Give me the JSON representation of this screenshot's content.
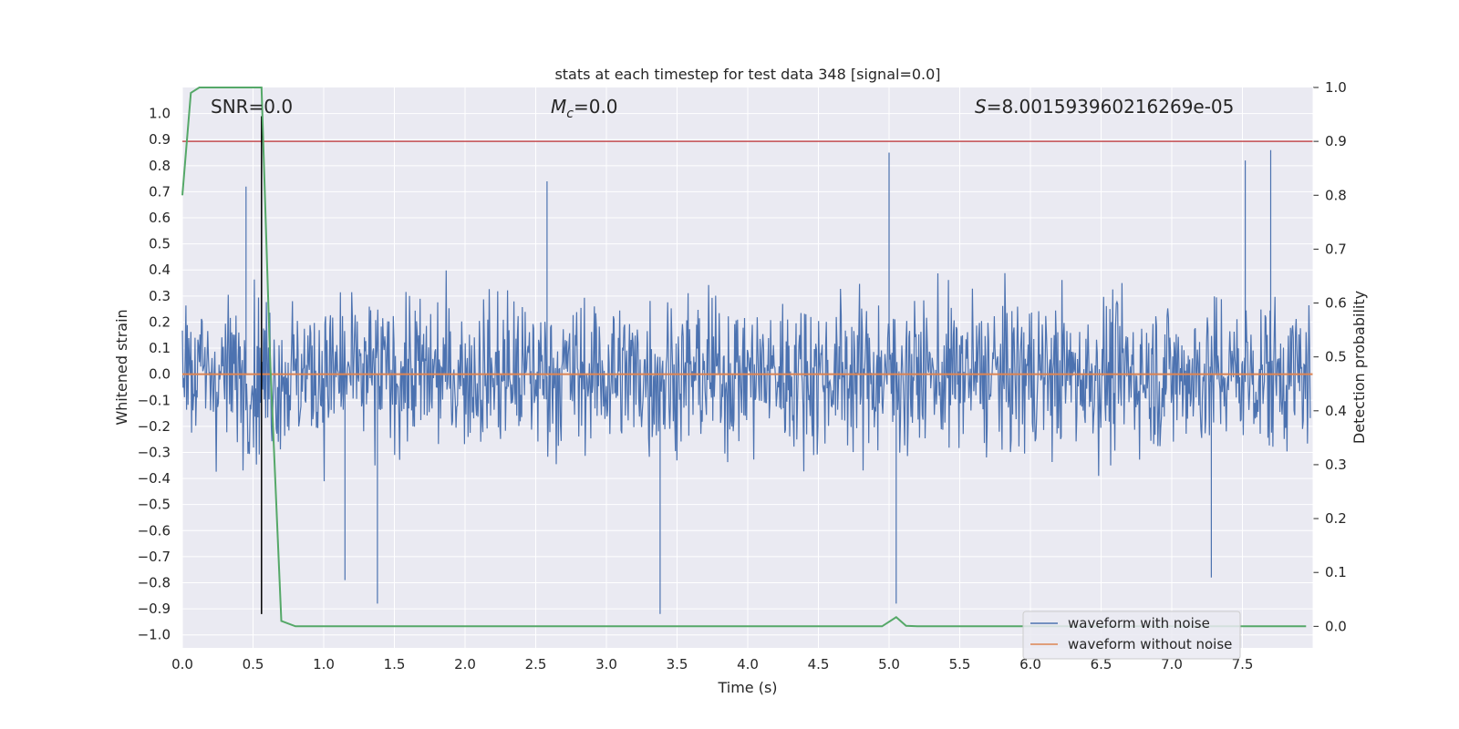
{
  "chart_data": {
    "type": "line",
    "title": "stats at each timestep for test data 348 [signal=0.0]",
    "xlabel": "Time (s)",
    "ylabel": "Whitened strain",
    "y2label": "Detection probability",
    "xlim": [
      0.0,
      8.0
    ],
    "ylim": [
      -1.05,
      1.1
    ],
    "y2lim": [
      -0.04,
      1.0
    ],
    "xticks": [
      0.0,
      0.5,
      1.0,
      1.5,
      2.0,
      2.5,
      3.0,
      3.5,
      4.0,
      4.5,
      5.0,
      5.5,
      6.0,
      6.5,
      7.0,
      7.5
    ],
    "xtick_labels": [
      "0.0",
      "0.5",
      "1.0",
      "1.5",
      "2.0",
      "2.5",
      "3.0",
      "3.5",
      "4.0",
      "4.5",
      "5.0",
      "5.5",
      "6.0",
      "6.5",
      "7.0",
      "7.5"
    ],
    "yticks": [
      -1.0,
      -0.9,
      -0.8,
      -0.7,
      -0.6,
      -0.5,
      -0.4,
      -0.3,
      -0.2,
      -0.1,
      0.0,
      0.1,
      0.2,
      0.3,
      0.4,
      0.5,
      0.6,
      0.7,
      0.8,
      0.9,
      1.0
    ],
    "ytick_labels": [
      "−1.0",
      "−0.9",
      "−0.8",
      "−0.7",
      "−0.6",
      "−0.5",
      "−0.4",
      "−0.3",
      "−0.2",
      "−0.1",
      "0.0",
      "0.1",
      "0.2",
      "0.3",
      "0.4",
      "0.5",
      "0.6",
      "0.7",
      "0.8",
      "0.9",
      "1.0"
    ],
    "y2ticks": [
      0.0,
      0.1,
      0.2,
      0.3,
      0.4,
      0.5,
      0.6,
      0.7,
      0.8,
      0.9,
      1.0
    ],
    "y2tick_labels": [
      "0.0",
      "0.1",
      "0.2",
      "0.3",
      "0.4",
      "0.5",
      "0.6",
      "0.7",
      "0.8",
      "0.9",
      "1.0"
    ],
    "noise_series": {
      "name": "waveform with noise",
      "color": "#4c72b0",
      "amplitude_band": [
        -0.45,
        0.45
      ],
      "peak_top": 0.86,
      "peak_bottom": -0.92
    },
    "clean_series": {
      "name": "waveform without noise",
      "color": "#dd8452",
      "value": 0.0
    },
    "detection_probability": {
      "color": "#55a868",
      "axis": "right",
      "x": [
        0.0,
        0.06,
        0.12,
        0.2,
        0.3,
        0.4,
        0.5,
        0.56,
        0.62,
        0.7,
        0.8,
        0.9,
        1.0,
        2.0,
        3.0,
        4.0,
        4.95,
        5.05,
        5.12,
        5.2,
        6.0,
        7.0,
        7.95
      ],
      "y": [
        0.8,
        0.99,
        1.0,
        1.0,
        1.0,
        1.0,
        1.0,
        1.0,
        0.5,
        0.01,
        0.0,
        0.0,
        0.0,
        0.0,
        0.0,
        0.0,
        0.0,
        0.017,
        0.001,
        0.0,
        0.0,
        0.0,
        0.0
      ]
    },
    "threshold_line": {
      "axis": "right",
      "value": 0.9,
      "color": "#c44e52"
    },
    "vertical_marker": {
      "x": 0.56,
      "y_range": [
        -0.92,
        0.99
      ],
      "color": "#000000"
    },
    "annotations": {
      "snr": "SNR=0.0",
      "mc_symbol": "M",
      "mc_sub": "c",
      "mc_value": "=0.0",
      "s_symbol": "S",
      "s_value": "=8.001593960216269e-05"
    },
    "legend": {
      "position": "lower-right",
      "entries": [
        "waveform with noise",
        "waveform without noise"
      ]
    }
  }
}
